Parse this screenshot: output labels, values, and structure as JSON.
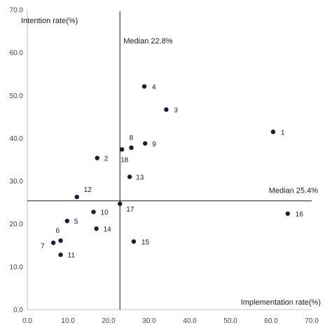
{
  "chart_data": {
    "type": "scatter",
    "xlabel": "Implementation rate(%)",
    "ylabel": "Intention rate(%)",
    "xlim": [
      0,
      70
    ],
    "ylim": [
      0,
      70
    ],
    "x_ticks": [
      "0.0",
      "10.0",
      "20.0",
      "30.0",
      "40.0",
      "50.0",
      "60.0",
      "70.0"
    ],
    "y_ticks": [
      "0.0",
      "10.0",
      "20.0",
      "30.0",
      "40.0",
      "50.0",
      "60.0",
      "70.0"
    ],
    "grid": false,
    "median_x": {
      "value": 22.8,
      "label": "Median 22.8%"
    },
    "median_y": {
      "value": 25.4,
      "label": "Median 25.4%"
    },
    "points": [
      {
        "label": "1",
        "x": 60.5,
        "y": 41.5
      },
      {
        "label": "2",
        "x": 17.2,
        "y": 35.4
      },
      {
        "label": "3",
        "x": 34.2,
        "y": 46.7
      },
      {
        "label": "4",
        "x": 28.8,
        "y": 52.1
      },
      {
        "label": "5",
        "x": 9.8,
        "y": 20.7
      },
      {
        "label": "6",
        "x": 8.2,
        "y": 16.1
      },
      {
        "label": "7",
        "x": 6.4,
        "y": 15.6
      },
      {
        "label": "8",
        "x": 25.6,
        "y": 37.8
      },
      {
        "label": "9",
        "x": 29.0,
        "y": 38.8
      },
      {
        "label": "10",
        "x": 16.3,
        "y": 22.8
      },
      {
        "label": "11",
        "x": 8.2,
        "y": 12.8
      },
      {
        "label": "12",
        "x": 12.2,
        "y": 26.3
      },
      {
        "label": "13",
        "x": 25.2,
        "y": 31.0
      },
      {
        "label": "14",
        "x": 17.0,
        "y": 18.9
      },
      {
        "label": "15",
        "x": 26.2,
        "y": 15.9
      },
      {
        "label": "16",
        "x": 64.1,
        "y": 22.4
      },
      {
        "label": "17",
        "x": 22.8,
        "y": 24.7
      },
      {
        "label": "18",
        "x": 23.3,
        "y": 37.4
      }
    ],
    "colors": {
      "point": "#1a1a3a",
      "line": "#1a1a1a",
      "axis": "#bfbfbf"
    }
  }
}
